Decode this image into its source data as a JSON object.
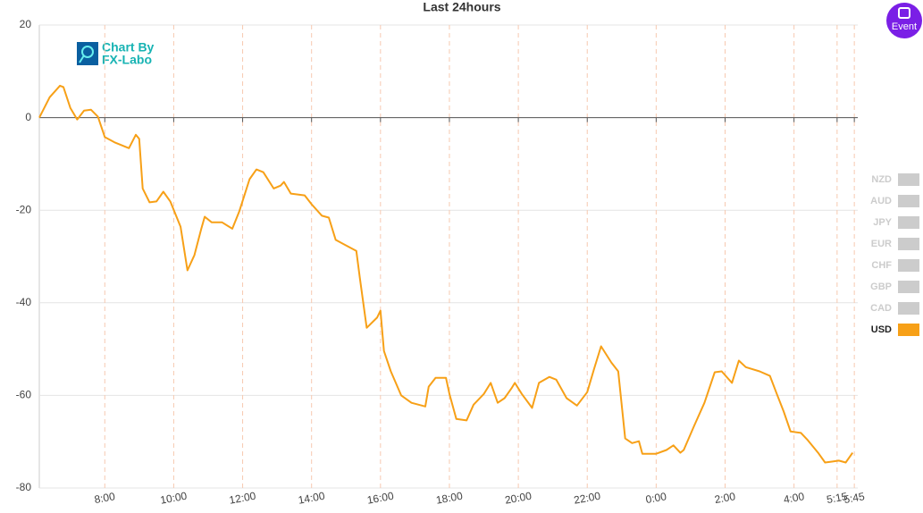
{
  "chart_data": {
    "type": "line",
    "title": "Last 24hours",
    "watermark": [
      "Chart By",
      "FX-Labo"
    ],
    "event_button": "Event",
    "x": [
      6.1,
      6.4,
      6.7,
      6.8,
      7.0,
      7.2,
      7.4,
      7.6,
      7.8,
      8.0,
      8.3,
      8.7,
      8.9,
      9.0,
      9.1,
      9.3,
      9.5,
      9.7,
      9.9,
      10.2,
      10.4,
      10.6,
      10.8,
      10.9,
      11.1,
      11.4,
      11.7,
      11.9,
      12.2,
      12.4,
      12.6,
      12.9,
      13.1,
      13.2,
      13.4,
      13.8,
      14.0,
      14.3,
      14.5,
      14.7,
      15.0,
      15.3,
      15.4,
      15.6,
      15.9,
      16.0,
      16.1,
      16.3,
      16.6,
      16.9,
      17.3,
      17.4,
      17.6,
      17.9,
      18.0,
      18.2,
      18.5,
      18.7,
      19.0,
      19.2,
      19.4,
      19.6,
      19.8,
      19.9,
      20.1,
      20.4,
      20.6,
      20.9,
      21.1,
      21.4,
      21.7,
      22.0,
      22.2,
      22.4,
      22.7,
      22.9,
      23.1,
      23.3,
      23.5,
      23.6,
      24.0,
      24.3,
      24.5,
      24.7,
      24.8,
      25.1,
      25.4,
      25.7,
      25.9,
      26.2,
      26.4,
      26.6,
      27.0,
      27.3,
      27.5,
      27.7,
      27.9,
      28.2,
      28.4,
      28.7,
      28.9,
      29.1,
      29.3,
      29.5,
      29.7
    ],
    "series": [
      {
        "name": "USD",
        "color": "#f7a017",
        "values": [
          0,
          4.4,
          6.9,
          6.6,
          2.1,
          -0.4,
          1.5,
          1.7,
          0.2,
          -4.2,
          -5.4,
          -6.6,
          -3.7,
          -4.6,
          -15.3,
          -18.3,
          -18.1,
          -16,
          -18.1,
          -23.6,
          -33,
          -29.7,
          -24,
          -21.4,
          -22.6,
          -22.6,
          -24,
          -20.3,
          -13.3,
          -11.2,
          -11.8,
          -15.3,
          -14.7,
          -13.9,
          -16.4,
          -16.8,
          -18.7,
          -21.2,
          -21.6,
          -26.4,
          -27.6,
          -28.8,
          -34.6,
          -45.4,
          -43.2,
          -41.7,
          -50.4,
          -54.8,
          -60,
          -61.6,
          -62.4,
          -58.1,
          -56.2,
          -56.2,
          -59.7,
          -65.1,
          -65.4,
          -62,
          -59.7,
          -57.3,
          -61.6,
          -60.6,
          -58.5,
          -57.3,
          -59.7,
          -62.7,
          -57.3,
          -56,
          -56.6,
          -60.6,
          -62.2,
          -59.3,
          -54.2,
          -49.4,
          -52.9,
          -54.8,
          -69.3,
          -70.3,
          -69.9,
          -72.6,
          -72.6,
          -71.8,
          -70.8,
          -72.4,
          -71.8,
          -66.6,
          -61.6,
          -55,
          -54.8,
          -57.3,
          -52.5,
          -53.9,
          -54.8,
          -55.8,
          -59.7,
          -63.5,
          -67.8,
          -68.1,
          -69.7,
          -72.4,
          -74.5,
          -74.3,
          -74.1,
          -74.5,
          -72.4
        ]
      }
    ],
    "inactive_legend": {
      "names": [
        "NZD",
        "AUD",
        "JPY",
        "EUR",
        "CHF",
        "GBP",
        "CAD"
      ],
      "color": "#cccccc"
    },
    "xlim": [
      6.1,
      29.85
    ],
    "xticks": [
      {
        "value": 8,
        "label": "8:00"
      },
      {
        "value": 10,
        "label": "10:00"
      },
      {
        "value": 12,
        "label": "12:00"
      },
      {
        "value": 14,
        "label": "14:00"
      },
      {
        "value": 16,
        "label": "16:00"
      },
      {
        "value": 18,
        "label": "18:00"
      },
      {
        "value": 20,
        "label": "20:00"
      },
      {
        "value": 22,
        "label": "22:00"
      },
      {
        "value": 24,
        "label": "0:00"
      },
      {
        "value": 26,
        "label": "2:00"
      },
      {
        "value": 28,
        "label": "4:00"
      },
      {
        "value": 29.25,
        "label": "5:15"
      },
      {
        "value": 29.75,
        "label": "5:45"
      }
    ],
    "ylim": [
      -80,
      20
    ],
    "yticks": [
      20,
      0,
      -20,
      -40,
      -60,
      -80
    ],
    "grid": true
  }
}
